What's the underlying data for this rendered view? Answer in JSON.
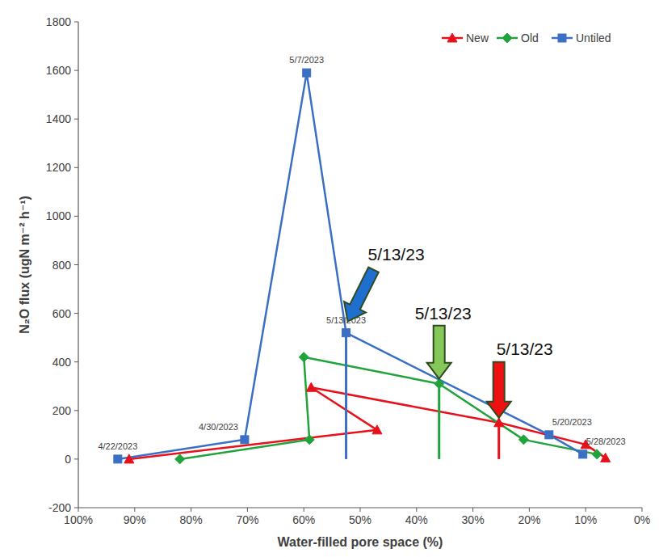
{
  "chart_data": {
    "type": "line",
    "x_label": "Water-filled pore space (%)",
    "y_label": "N₂O flux (ugN m⁻² h⁻¹)",
    "xlim": [
      100,
      0
    ],
    "xticks": [
      {
        "value": 100,
        "label": "100%"
      },
      {
        "value": 90,
        "label": "90%"
      },
      {
        "value": 80,
        "label": "80%"
      },
      {
        "value": 70,
        "label": "70%"
      },
      {
        "value": 60,
        "label": "60%"
      },
      {
        "value": 50,
        "label": "50%"
      },
      {
        "value": 40,
        "label": "40%"
      },
      {
        "value": 30,
        "label": "30%"
      },
      {
        "value": 20,
        "label": "20%"
      },
      {
        "value": 10,
        "label": "10%"
      },
      {
        "value": 0,
        "label": "0%"
      }
    ],
    "ylim": [
      -200,
      1800
    ],
    "yticks": [
      -200,
      0,
      200,
      400,
      600,
      800,
      1000,
      1200,
      1400,
      1600,
      1800
    ],
    "grid": false,
    "legend": "top-right",
    "series": [
      {
        "name": "New",
        "color": "#e8101a",
        "marker": "triangle",
        "x": [
          91,
          47,
          58.7,
          25.4,
          10,
          6.5
        ],
        "values": [
          0,
          120,
          295,
          150,
          60,
          5
        ],
        "callouts": [
          {
            "text": "5/13/23",
            "index": 3
          }
        ]
      },
      {
        "name": "Old",
        "color": "#1fa33a",
        "marker": "diamond",
        "x": [
          82,
          59,
          60,
          36,
          21,
          8
        ],
        "values": [
          0,
          80,
          420,
          310,
          80,
          20
        ],
        "callouts": [
          {
            "text": "5/13/23",
            "index": 3
          }
        ]
      },
      {
        "name": "Untiled",
        "color": "#3a6fc4",
        "marker": "square",
        "x": [
          93,
          70.5,
          59.5,
          52.5,
          16.5,
          10.5
        ],
        "values": [
          0,
          80,
          1590,
          520,
          100,
          20
        ],
        "point_labels": [
          "4/22/2023",
          "4/30/2023",
          "5/7/2023",
          "5/13/2023",
          "5/20/2023",
          "5/28/2023"
        ],
        "callouts": [
          {
            "text": "5/13/23",
            "index": 3
          }
        ]
      }
    ]
  }
}
